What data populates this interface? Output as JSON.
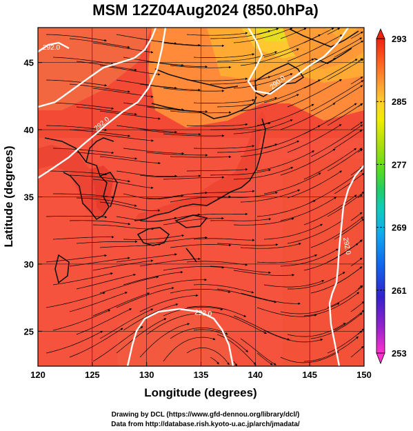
{
  "title": "MSM 12Z04Aug2024 (850.0hPa)",
  "x_axis": {
    "label": "Longitude (degrees)",
    "range": [
      120,
      150
    ],
    "ticks": [
      "120",
      "125",
      "130",
      "135",
      "140",
      "145",
      "150"
    ]
  },
  "y_axis": {
    "label": "Latitude  (degrees)",
    "range": [
      22.4,
      47.6
    ],
    "ticks": [
      "25",
      "30",
      "35",
      "40",
      "45"
    ]
  },
  "colorbar": {
    "range": [
      253,
      293
    ],
    "ticks": [
      "293",
      "285",
      "277",
      "269",
      "261",
      "253"
    ],
    "colors": [
      "#ff33cc",
      "#9922cc",
      "#3322cc",
      "#1166ee",
      "#11aaee",
      "#11ccbb",
      "#22cc66",
      "#55dd22",
      "#aadd11",
      "#eeee00",
      "#ffcc33",
      "#ff9933",
      "#ff6622",
      "#ff3311",
      "#ee2211"
    ]
  },
  "contour_labels": [
    "292.0",
    "290.0",
    "292.0",
    "292.0",
    "292.0"
  ],
  "credits": {
    "line1": "Drawing by DCL (https://www.gfd-dennou.org/library/dcl/)",
    "line2": "Data from http://database.rish.kyoto-u.ac.jp/arch/jmadata/"
  }
}
